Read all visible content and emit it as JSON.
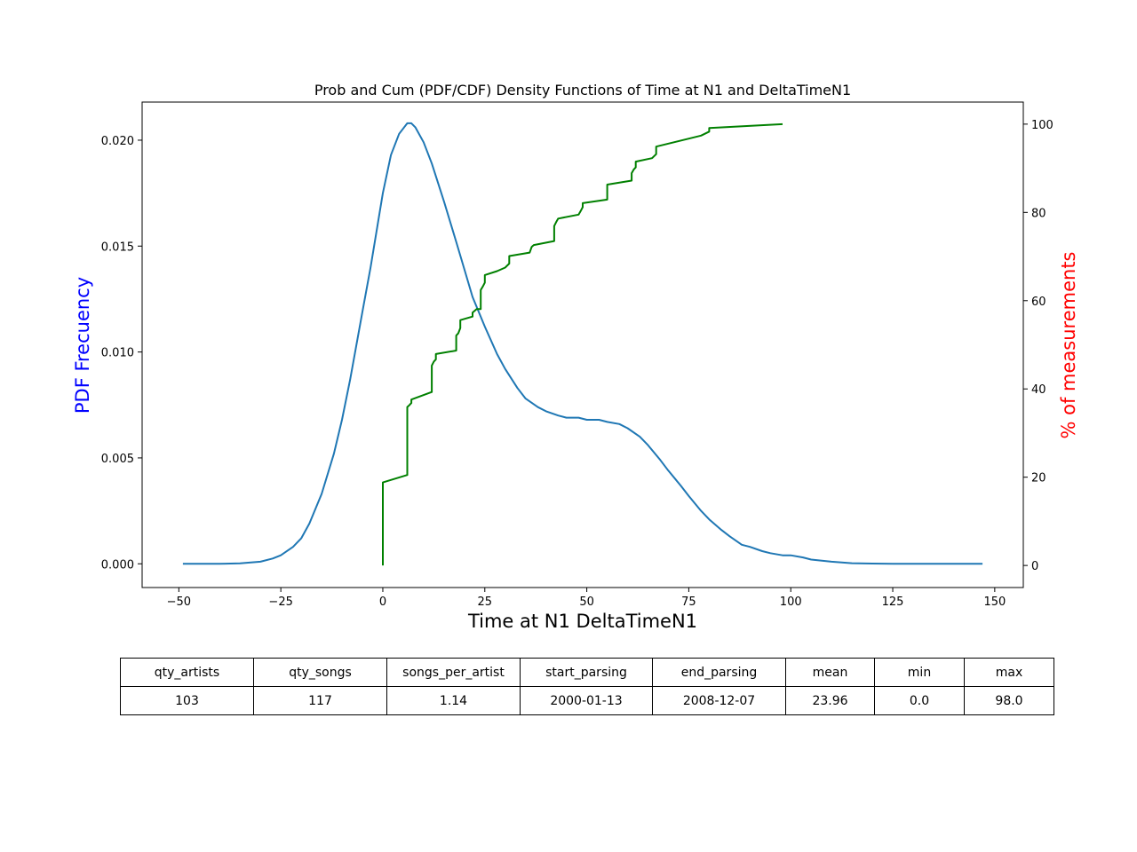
{
  "chart_data": {
    "type": "line",
    "title": "Prob and Cum (PDF/CDF) Density Functions of Time at N1 and DeltaTimeN1",
    "xlabel": "Time at N1 DeltaTimeN1",
    "ylabel": "PDF Frecuency",
    "ylabel_right": "% of measurements",
    "xlim": [
      -59,
      157
    ],
    "ylim": [
      -0.00112,
      0.0218
    ],
    "ylim_right": [
      -5,
      105
    ],
    "xticks": [
      -50,
      -25,
      0,
      25,
      50,
      75,
      100,
      125,
      150
    ],
    "xtick_labels": [
      "−50",
      "−25",
      "0",
      "25",
      "50",
      "75",
      "100",
      "125",
      "150"
    ],
    "yticks": [
      0.0,
      0.005,
      0.01,
      0.015,
      0.02
    ],
    "ytick_labels": [
      "0.000",
      "0.005",
      "0.010",
      "0.015",
      "0.020"
    ],
    "yticks_right": [
      0,
      20,
      40,
      60,
      80,
      100
    ],
    "ytick_labels_right": [
      "0",
      "20",
      "40",
      "60",
      "80",
      "100"
    ],
    "grid": false,
    "colors": {
      "pdf": "#1f77b4",
      "cdf": "#008000",
      "ylabel": "#0000ff",
      "ylabel_right": "#ff0000"
    },
    "series": [
      {
        "axis": "left",
        "x": [
          -49,
          -40,
          -35,
          -30,
          -27,
          -25,
          -22,
          -20,
          -18,
          -15,
          -12,
          -10,
          -8,
          -5,
          -3,
          0,
          2,
          4,
          6,
          7,
          8,
          10,
          12,
          15,
          18,
          20,
          22,
          25,
          28,
          30,
          33,
          35,
          38,
          40,
          43,
          45,
          48,
          50,
          53,
          55,
          58,
          60,
          63,
          65,
          68,
          70,
          73,
          75,
          78,
          80,
          83,
          85,
          88,
          90,
          93,
          95,
          98,
          100,
          103,
          105,
          110,
          115,
          120,
          125,
          130,
          140,
          147
        ],
        "y": [
          0.0,
          0.0,
          2e-05,
          0.0001,
          0.00025,
          0.0004,
          0.0008,
          0.0012,
          0.0019,
          0.0033,
          0.0052,
          0.0068,
          0.0087,
          0.0119,
          0.014,
          0.0175,
          0.0193,
          0.0203,
          0.0208,
          0.0208,
          0.0206,
          0.0199,
          0.0189,
          0.0171,
          0.0152,
          0.0139,
          0.0126,
          0.0112,
          0.0099,
          0.0092,
          0.0083,
          0.0078,
          0.0074,
          0.0072,
          0.007,
          0.0069,
          0.0069,
          0.0068,
          0.0068,
          0.0067,
          0.0066,
          0.0064,
          0.006,
          0.0056,
          0.0049,
          0.0044,
          0.0037,
          0.0032,
          0.0025,
          0.0021,
          0.0016,
          0.0013,
          0.0009,
          0.0008,
          0.0006,
          0.0005,
          0.0004,
          0.0004,
          0.0003,
          0.0002,
          0.0001,
          3e-05,
          1e-05,
          0.0,
          0.0,
          0.0,
          0.0
        ]
      },
      {
        "axis": "right",
        "x": [
          0,
          0,
          6,
          6,
          6,
          6.5,
          7,
          7,
          12,
          12,
          12.5,
          13,
          13,
          18,
          18,
          18.5,
          19,
          19,
          22,
          22,
          23,
          24,
          24,
          24.5,
          25,
          25,
          28,
          30,
          31,
          31,
          36,
          36.5,
          37,
          42,
          42,
          42.5,
          43,
          48,
          48.5,
          49,
          49,
          55,
          55,
          61,
          61,
          61.5,
          62,
          62,
          66,
          67,
          67,
          78,
          80,
          80,
          98
        ],
        "y": [
          0,
          18.8,
          20.5,
          26.5,
          35.9,
          36.3,
          36.8,
          37.6,
          39.3,
          45.3,
          46.2,
          46.7,
          47.9,
          48.7,
          52.1,
          52.6,
          53.8,
          55.6,
          56.4,
          57.3,
          58.1,
          58.1,
          62.4,
          63.2,
          64.1,
          65.8,
          66.7,
          67.5,
          68.4,
          70.1,
          70.9,
          72.2,
          72.6,
          73.5,
          76.9,
          77.8,
          78.6,
          79.5,
          80.3,
          81.2,
          82.1,
          82.9,
          86.3,
          87.2,
          88.9,
          89.7,
          90.2,
          91.5,
          92.3,
          93.2,
          94.9,
          97.4,
          98.3,
          99.1,
          100
        ]
      }
    ]
  },
  "stats_table": {
    "headers": [
      "qty_artists",
      "qty_songs",
      "songs_per_artist",
      "start_parsing",
      "end_parsing",
      "mean",
      "min",
      "max"
    ],
    "values": [
      "103",
      "117",
      "1.14",
      "2000-01-13",
      "2008-12-07",
      "23.96",
      "0.0",
      "98.0"
    ]
  }
}
